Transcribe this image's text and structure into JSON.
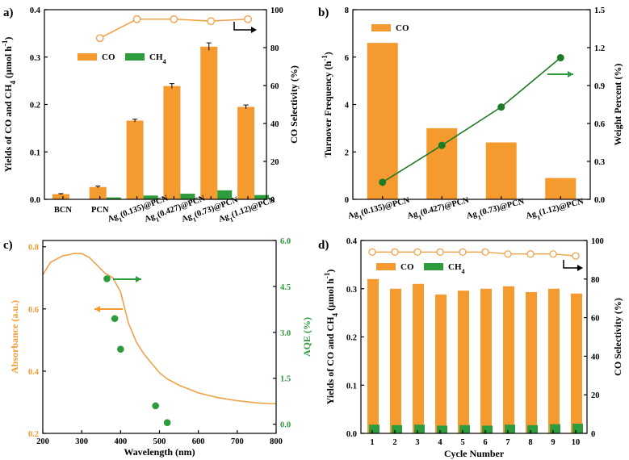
{
  "colors": {
    "orange": "#f59a2e",
    "green": "#2e9b3c",
    "darkgreen": "#1f7a25",
    "orangeline": "#f0a24a"
  },
  "chart_data": [
    {
      "panel": "a)",
      "type": "bar",
      "categories": [
        "BCN",
        "PCN",
        "Ag1(0.135)@PCN",
        "Ag1(0.427)@PCN",
        "Ag1(0.73)@PCN",
        "Ag1(1.12)@PCN"
      ],
      "category_labels": [
        {
          "main": "BCN",
          "sub": "",
          "rest": ""
        },
        {
          "main": "PCN",
          "sub": "",
          "rest": ""
        },
        {
          "main": "Ag",
          "sub": "1",
          "rest": "(0.135)@PCN"
        },
        {
          "main": "Ag",
          "sub": "1",
          "rest": "(0.427)@PCN"
        },
        {
          "main": "Ag",
          "sub": "1",
          "rest": "(0.73)@PCN"
        },
        {
          "main": "Ag",
          "sub": "1",
          "rest": "(1.12)@PCN"
        }
      ],
      "series": [
        {
          "name": "CO",
          "values": [
            0.011,
            0.026,
            0.166,
            0.239,
            0.322,
            0.195
          ],
          "errors": [
            0.001,
            0.002,
            0.003,
            0.005,
            0.008,
            0.004
          ]
        },
        {
          "name": "CH4",
          "values": [
            0.0,
            0.004,
            0.008,
            0.012,
            0.019,
            0.009
          ]
        }
      ],
      "secondary_series": {
        "name": "CO Selectivity",
        "values": [
          null,
          85,
          95,
          95,
          94,
          95
        ]
      },
      "ylabel": "Yields of CO and CH4 (μmol h-1)",
      "ylabel_parts": [
        "Yields of CO and CH",
        "4",
        " (μmol h",
        "-1",
        ")"
      ],
      "y2label": "CO Selectivity (%)",
      "ylim": [
        0,
        0.4
      ],
      "yticks": [
        "0.0",
        "0.1",
        "0.2",
        "0.3",
        "0.4"
      ],
      "y2lim": [
        0,
        100
      ],
      "y2ticks": [
        "0",
        "20",
        "40",
        "60",
        "80",
        "100"
      ],
      "legend": [
        {
          "name": "CO",
          "main": "CO",
          "sub": ""
        },
        {
          "name": "CH4",
          "main": "CH",
          "sub": "4"
        }
      ]
    },
    {
      "panel": "b)",
      "type": "bar",
      "categories": [
        "Ag1(0.135)@PCN",
        "Ag1(0.427)@PCN",
        "Ag1(0.73)@PCN",
        "Ag1(1.12)@PCN"
      ],
      "category_labels": [
        {
          "main": "Ag",
          "sub": "1",
          "rest": "(0.135)@PCN"
        },
        {
          "main": "Ag",
          "sub": "1",
          "rest": "(0.427)@PCN"
        },
        {
          "main": "Ag",
          "sub": "1",
          "rest": "(0.73)@PCN"
        },
        {
          "main": "Ag",
          "sub": "1",
          "rest": "(1.12)@PCN"
        }
      ],
      "series": [
        {
          "name": "CO",
          "values": [
            6.6,
            3.0,
            2.4,
            0.9
          ]
        }
      ],
      "secondary_series": {
        "name": "Weight Percent",
        "values": [
          0.135,
          0.427,
          0.73,
          1.12
        ]
      },
      "ylabel": "Turnover Frequency (h-1)",
      "ylabel_parts": [
        "Turnover Frequency (h",
        "-1",
        ")"
      ],
      "y2label": "Weight Percent (%)",
      "ylim": [
        0,
        8
      ],
      "yticks": [
        "0",
        "2",
        "4",
        "6",
        "8"
      ],
      "y2lim": [
        0,
        1.5
      ],
      "y2ticks": [
        "0.0",
        "0.3",
        "0.6",
        "0.9",
        "1.2",
        "1.5"
      ],
      "legend": [
        {
          "name": "CO",
          "main": "CO",
          "sub": ""
        }
      ]
    },
    {
      "panel": "c)",
      "type": "line",
      "series": [
        {
          "name": "Absorbance",
          "x": [
            200,
            220,
            250,
            280,
            300,
            320,
            340,
            360,
            380,
            400,
            420,
            440,
            460,
            480,
            500,
            520,
            550,
            600,
            650,
            700,
            750,
            780,
            800
          ],
          "y": [
            0.71,
            0.75,
            0.77,
            0.778,
            0.778,
            0.765,
            0.74,
            0.715,
            0.7,
            0.655,
            0.555,
            0.495,
            0.455,
            0.425,
            0.395,
            0.375,
            0.355,
            0.33,
            0.315,
            0.305,
            0.298,
            0.296,
            0.295
          ]
        },
        {
          "name": "AQE",
          "x": [
            365,
            385,
            400,
            490,
            520
          ],
          "y": [
            4.75,
            3.45,
            2.45,
            0.6,
            0.05
          ]
        }
      ],
      "xlabel": "Wavelength (nm)",
      "ylabel": "Absorbance (a.u.)",
      "y2label": "AQE (%)",
      "xlim": [
        200,
        800
      ],
      "xticks": [
        "200",
        "300",
        "400",
        "500",
        "600",
        "700",
        "800"
      ],
      "ylim": [
        0.2,
        0.82
      ],
      "yticks": [
        "0.2",
        "0.4",
        "0.6",
        "0.8"
      ],
      "y2lim": [
        -0.3,
        6.0
      ],
      "y2ticks": [
        "0.0",
        "1.5",
        "3.0",
        "4.5",
        "6.0"
      ]
    },
    {
      "panel": "d)",
      "type": "bar",
      "categories": [
        "1",
        "2",
        "3",
        "4",
        "5",
        "6",
        "7",
        "8",
        "9",
        "10"
      ],
      "series": [
        {
          "name": "CO",
          "values": [
            0.32,
            0.3,
            0.31,
            0.288,
            0.296,
            0.3,
            0.305,
            0.293,
            0.3,
            0.29
          ]
        },
        {
          "name": "CH4",
          "values": [
            0.018,
            0.017,
            0.018,
            0.016,
            0.017,
            0.016,
            0.018,
            0.017,
            0.019,
            0.02
          ]
        }
      ],
      "secondary_series": {
        "name": "CO Selectivity",
        "values": [
          94,
          94,
          94,
          94,
          94,
          94,
          93,
          93,
          93,
          92
        ]
      },
      "xlabel": "Cycle Number",
      "ylabel": "Yields of CO and CH4 (μmol h-1)",
      "ylabel_parts": [
        "Yields of CO and CH",
        "4",
        " (μmol h",
        "-1",
        ")"
      ],
      "y2label": "CO Selectivity (%)",
      "ylim": [
        0,
        0.4
      ],
      "yticks": [
        "0.0",
        "0.1",
        "0.2",
        "0.3",
        "0.4"
      ],
      "y2lim": [
        0,
        100
      ],
      "y2ticks": [
        "0",
        "20",
        "40",
        "60",
        "80",
        "100"
      ],
      "legend": [
        {
          "name": "CO",
          "main": "CO",
          "sub": ""
        },
        {
          "name": "CH4",
          "main": "CH",
          "sub": "4"
        }
      ]
    }
  ]
}
